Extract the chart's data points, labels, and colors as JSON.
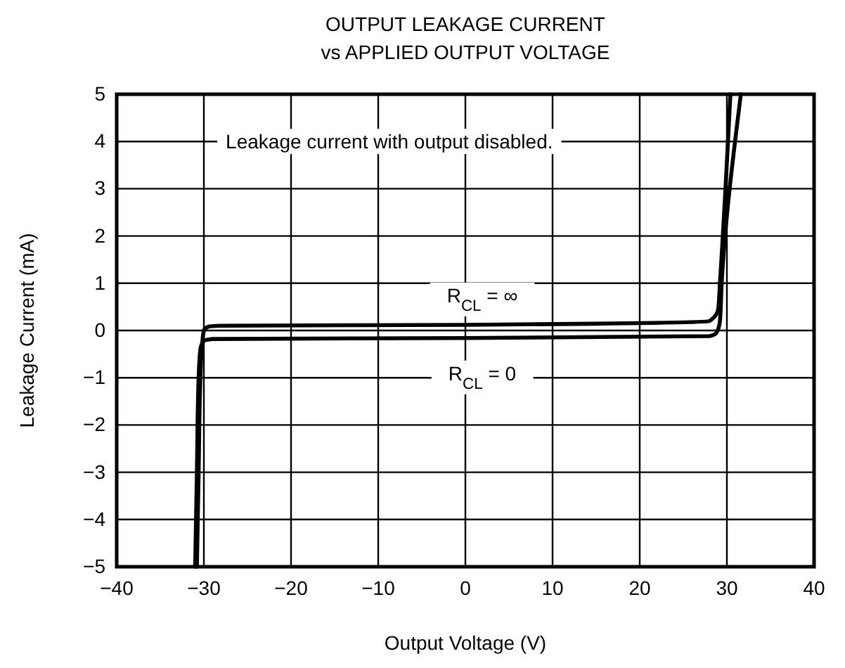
{
  "chart_data": {
    "type": "line",
    "title": "OUTPUT LEAKAGE CURRENT",
    "subtitle": "vs APPLIED OUTPUT VOLTAGE",
    "xlabel": "Output Voltage (V)",
    "ylabel": "Leakage Current (mA)",
    "xlim": [
      -40,
      40
    ],
    "xticks": [
      -40,
      -30,
      -20,
      -10,
      0,
      10,
      20,
      30,
      40
    ],
    "ylim": [
      -5,
      5
    ],
    "yticks": [
      -5,
      -4,
      -3,
      -2,
      -1,
      0,
      1,
      2,
      3,
      4,
      5
    ],
    "grid": true,
    "annotations": [
      "Leakage current with output disabled."
    ],
    "series": [
      {
        "name": "R$_{CL}$ = ∞",
        "color": "#000000",
        "x": [
          -30.8,
          -30.6,
          -30.4,
          -30.2,
          -30,
          -29.5,
          -28,
          0,
          28,
          29,
          29.2,
          30.4
        ],
        "values": [
          -5,
          -3,
          -1,
          -0.3,
          0,
          0.08,
          0.1,
          0.12,
          0.2,
          0.45,
          1,
          5
        ]
      },
      {
        "name": "R$_{CL}$ = 0",
        "color": "#000000",
        "x": [
          -31,
          -30.8,
          -30.6,
          -30.4,
          -30,
          -29,
          0,
          28,
          28.8,
          29.2,
          29.4,
          31.6
        ],
        "values": [
          -5,
          -3,
          -1,
          -0.4,
          -0.22,
          -0.18,
          -0.16,
          -0.12,
          -0.05,
          0.2,
          1,
          5
        ]
      }
    ]
  }
}
